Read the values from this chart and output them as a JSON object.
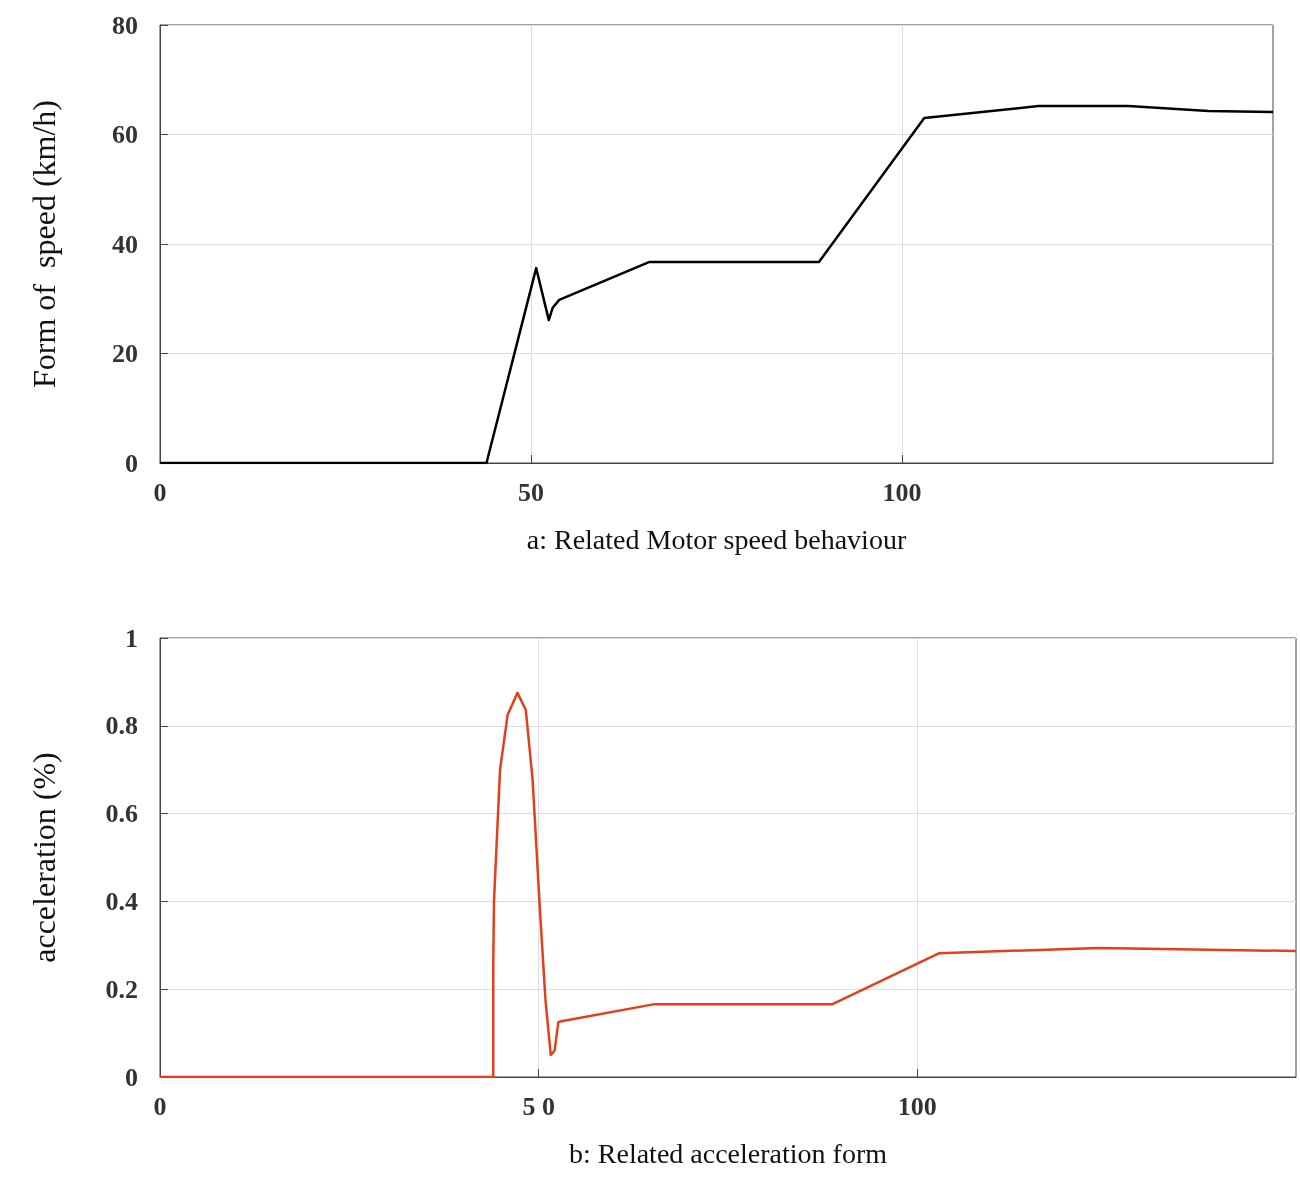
{
  "chart_data": [
    {
      "type": "line",
      "xlabel": "a: Related Motor speed behaviour",
      "ylabel": "Form of  speed (km/h)",
      "x": [
        0,
        44,
        50.7,
        52.4,
        52.9,
        53.8,
        65.9,
        88.8,
        103,
        118.4,
        130.5,
        141.3,
        150
      ],
      "series": [
        {
          "color": "#000000",
          "values": [
            0,
            0,
            35.6,
            26.1,
            28.3,
            29.8,
            36.7,
            36.7,
            63,
            65.2,
            65.2,
            64.3,
            64.1
          ]
        }
      ],
      "xlim": [
        0,
        150
      ],
      "xticks": [
        0,
        50,
        100
      ],
      "ylim": [
        0,
        80
      ],
      "yticks": [
        0,
        20,
        40,
        60,
        80
      ],
      "grid": true,
      "marker": "none",
      "line_style": "solid"
    },
    {
      "type": "line",
      "xlabel": "b: Related acceleration form",
      "ylabel": "acceleration (%)",
      "x": [
        0,
        44,
        44,
        44.1,
        44.9,
        45.9,
        47.2,
        48.3,
        49.2,
        50.1,
        50.9,
        51.6,
        52.1,
        52.6,
        53,
        65.3,
        88.8,
        102.9,
        124,
        150
      ],
      "series": [
        {
          "color": "#e0401c",
          "values": [
            0,
            0,
            0.25,
            0.4,
            0.7,
            0.825,
            0.875,
            0.836,
            0.677,
            0.4,
            0.175,
            0.05,
            0.06,
            0.125,
            0.127,
            0.166,
            0.166,
            0.282,
            0.294,
            0.287
          ]
        }
      ],
      "xlim": [
        0,
        150
      ],
      "xticks": [
        0,
        {
          "value": 50,
          "label": "5 0"
        },
        100
      ],
      "ylim": [
        0,
        1
      ],
      "yticks": [
        0,
        0.2,
        0.4,
        0.6,
        0.8,
        1
      ],
      "grid": true,
      "marker": "none",
      "line_style": "solid"
    }
  ]
}
